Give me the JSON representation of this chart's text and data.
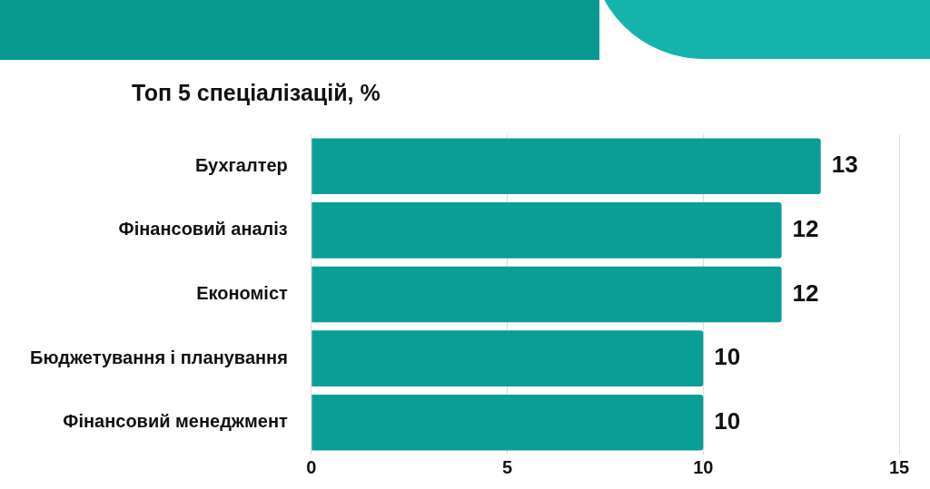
{
  "chart_data": {
    "type": "bar",
    "orientation": "horizontal",
    "title": "Топ 5 спеціалізацій, %",
    "categories": [
      "Бухгалтер",
      "Фінансовий аналіз",
      "Економіст",
      "Бюджетування і планування",
      "Фінансовий менеджмент"
    ],
    "values": [
      13,
      12,
      12,
      10,
      10
    ],
    "color": "#0a9e96",
    "xlim": [
      0,
      15
    ],
    "xticks": [
      0,
      5,
      10,
      15
    ],
    "grid": "x",
    "data_labels": true
  }
}
